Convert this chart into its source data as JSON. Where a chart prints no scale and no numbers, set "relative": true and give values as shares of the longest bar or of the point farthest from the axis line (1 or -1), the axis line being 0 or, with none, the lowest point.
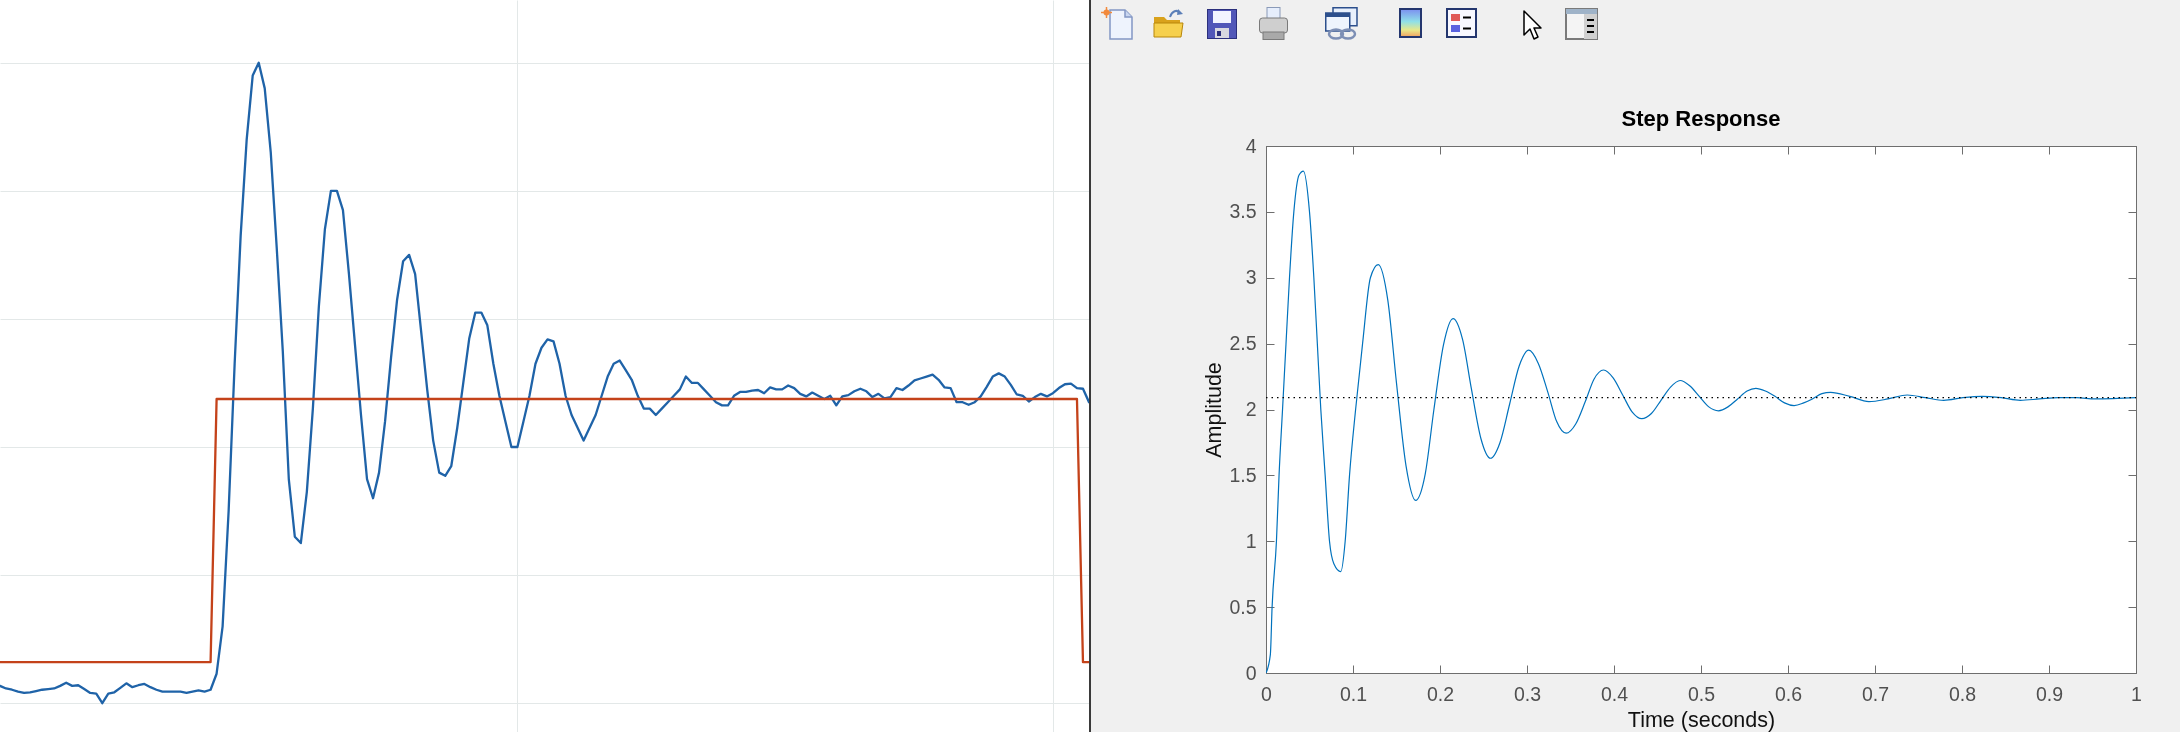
{
  "chart_data": [
    {
      "type": "line",
      "relative": true,
      "grid": true,
      "categories": [
        null,
        null,
        null,
        null,
        null,
        null,
        null,
        null,
        null,
        null,
        null,
        null,
        null,
        null,
        null,
        null,
        null,
        null,
        null,
        null,
        null,
        null,
        null,
        null,
        null,
        null,
        null,
        null,
        null,
        null,
        null,
        null,
        null,
        null,
        null,
        null,
        null,
        null,
        null,
        null,
        null,
        null,
        null,
        null,
        null,
        null,
        null,
        null,
        null,
        null,
        null,
        null,
        null,
        null,
        null,
        null,
        null,
        null,
        null,
        null,
        null,
        null,
        null,
        null,
        null,
        null,
        null,
        null,
        null,
        null,
        null,
        null,
        null,
        null,
        null,
        null,
        null,
        null,
        null,
        null,
        null,
        null,
        null,
        null,
        null,
        null,
        null,
        null,
        null,
        null,
        null,
        null,
        null,
        null,
        null,
        null,
        null,
        null,
        null,
        null,
        null,
        null,
        null,
        null,
        null,
        null,
        null,
        null,
        null,
        null,
        null,
        null,
        null,
        null,
        null,
        null,
        null,
        null,
        null,
        null,
        null,
        null,
        null,
        null,
        null,
        null,
        null,
        null,
        null,
        null,
        null,
        null,
        null,
        null,
        null,
        null,
        null,
        null,
        null,
        null,
        null,
        null,
        null,
        null,
        null,
        null,
        null,
        null,
        null,
        null,
        null,
        null,
        null,
        null,
        null,
        null,
        null,
        null,
        null,
        null,
        null,
        null,
        null,
        null,
        null,
        null,
        null,
        null,
        null,
        null,
        null,
        null,
        null,
        null,
        null,
        null,
        null,
        null,
        null,
        null,
        null,
        null
      ],
      "series": [
        {
          "color": "#1f63a8",
          "values": [
            0.027,
            0.023,
            0.021,
            0.018,
            0.016,
            0.017,
            0.019,
            0.021,
            0.022,
            0.023,
            0.027,
            0.032,
            0.027,
            0.028,
            0.022,
            0.016,
            0.015,
            0,
            0.015,
            0.017,
            0.024,
            0.031,
            0.025,
            0.028,
            0.03,
            0.025,
            0.021,
            0.018,
            0.018,
            0.018,
            0.018,
            0.016,
            0.018,
            0.02,
            0.018,
            0.021,
            0.046,
            0.12,
            0.3,
            0.53,
            0.73,
            0.88,
            0.98,
            1,
            0.96,
            0.86,
            0.71,
            0.55,
            0.35,
            0.26,
            0.25,
            0.33,
            0.46,
            0.62,
            0.74,
            0.8,
            0.8,
            0.77,
            0.67,
            0.56,
            0.45,
            0.35,
            0.32,
            0.36,
            0.44,
            0.54,
            0.63,
            0.69,
            0.7,
            0.67,
            0.58,
            0.49,
            0.41,
            0.36,
            0.355,
            0.37,
            0.43,
            0.5,
            0.57,
            0.61,
            0.61,
            0.59,
            0.53,
            0.48,
            0.44,
            0.4,
            0.4,
            0.44,
            0.48,
            0.53,
            0.555,
            0.568,
            0.565,
            0.53,
            0.48,
            0.45,
            0.43,
            0.41,
            0.43,
            0.45,
            0.48,
            0.51,
            0.53,
            0.535,
            0.52,
            0.505,
            0.48,
            0.46,
            0.46,
            0.45,
            0.46,
            0.47,
            0.48,
            0.49,
            0.51,
            0.5,
            0.5,
            0.49,
            0.48,
            0.47,
            0.465,
            0.465,
            0.48,
            0.486,
            0.486,
            0.488,
            0.489,
            0.484,
            0.493,
            0.49,
            0.49,
            0.496,
            0.492,
            0.483,
            0.479,
            0.485,
            0.48,
            0.475,
            0.48,
            0.465,
            0.479,
            0.481,
            0.487,
            0.491,
            0.487,
            0.478,
            0.483,
            0.476,
            0.478,
            0.492,
            0.489,
            0.496,
            0.504,
            0.507,
            0.51,
            0.513,
            0.505,
            0.493,
            0.492,
            0.47,
            0.47,
            0.466,
            0.47,
            0.479,
            0.494,
            0.51,
            0.515,
            0.51,
            0.497,
            0.482,
            0.48,
            0.471,
            0.478,
            0.483,
            0.479,
            0.484,
            0.492,
            0.498,
            0.499,
            0.492,
            0.491,
            0.47
          ]
        },
        {
          "color": "#c4421a",
          "values": [
            0.064,
            0.064,
            0.064,
            0.064,
            0.064,
            0.064,
            0.064,
            0.064,
            0.064,
            0.064,
            0.064,
            0.064,
            0.064,
            0.064,
            0.064,
            0.064,
            0.064,
            0.064,
            0.064,
            0.064,
            0.064,
            0.064,
            0.064,
            0.064,
            0.064,
            0.064,
            0.064,
            0.064,
            0.064,
            0.064,
            0.064,
            0.064,
            0.064,
            0.064,
            0.064,
            0.064,
            0.475,
            0.475,
            0.475,
            0.475,
            0.475,
            0.475,
            0.475,
            0.475,
            0.475,
            0.475,
            0.475,
            0.475,
            0.475,
            0.475,
            0.475,
            0.475,
            0.475,
            0.475,
            0.475,
            0.475,
            0.475,
            0.475,
            0.475,
            0.475,
            0.475,
            0.475,
            0.475,
            0.475,
            0.475,
            0.475,
            0.475,
            0.475,
            0.475,
            0.475,
            0.475,
            0.475,
            0.475,
            0.475,
            0.475,
            0.475,
            0.475,
            0.475,
            0.475,
            0.475,
            0.475,
            0.475,
            0.475,
            0.475,
            0.475,
            0.475,
            0.475,
            0.475,
            0.475,
            0.475,
            0.475,
            0.475,
            0.475,
            0.475,
            0.475,
            0.475,
            0.475,
            0.475,
            0.475,
            0.475,
            0.475,
            0.475,
            0.475,
            0.475,
            0.475,
            0.475,
            0.475,
            0.475,
            0.475,
            0.475,
            0.475,
            0.475,
            0.475,
            0.475,
            0.475,
            0.475,
            0.475,
            0.475,
            0.475,
            0.475,
            0.475,
            0.475,
            0.475,
            0.475,
            0.475,
            0.475,
            0.475,
            0.475,
            0.475,
            0.475,
            0.475,
            0.475,
            0.475,
            0.475,
            0.475,
            0.475,
            0.475,
            0.475,
            0.475,
            0.475,
            0.475,
            0.475,
            0.475,
            0.475,
            0.475,
            0.475,
            0.475,
            0.475,
            0.475,
            0.475,
            0.475,
            0.475,
            0.475,
            0.475,
            0.475,
            0.475,
            0.475,
            0.475,
            0.475,
            0.475,
            0.475,
            0.475,
            0.475,
            0.475,
            0.475,
            0.475,
            0.475,
            0.475,
            0.475,
            0.475,
            0.475,
            0.475,
            0.475,
            0.475,
            0.475,
            0.475,
            0.475,
            0.475,
            0.475,
            0.475,
            0.064,
            0.064
          ]
        }
      ]
    },
    {
      "type": "line",
      "title": "Step Response",
      "xlabel": "Time (seconds)",
      "ylabel": "Amplitude",
      "x": [
        0,
        0.005,
        0.007,
        0.012,
        0.015,
        0.019,
        0.023,
        0.027,
        0.032,
        0.038,
        0.043,
        0.05,
        0.055,
        0.059,
        0.063,
        0.068,
        0.073,
        0.078,
        0.086,
        0.091,
        0.096,
        0.103,
        0.111,
        0.12,
        0.129,
        0.14,
        0.15,
        0.161,
        0.172,
        0.183,
        0.193,
        0.204,
        0.215,
        0.226,
        0.236,
        0.247,
        0.258,
        0.269,
        0.28,
        0.291,
        0.302,
        0.313,
        0.324,
        0.334,
        0.345,
        0.356,
        0.367,
        0.377,
        0.388,
        0.399,
        0.41,
        0.421,
        0.432,
        0.443,
        0.454,
        0.465,
        0.476,
        0.487,
        0.498,
        0.509,
        0.52,
        0.531,
        0.542,
        0.553,
        0.563,
        0.574,
        0.585,
        0.596,
        0.607,
        0.618,
        0.628,
        0.639,
        0.649,
        0.671,
        0.693,
        0.715,
        0.737,
        0.758,
        0.779,
        0.801,
        0.823,
        0.845,
        0.867,
        0.889,
        0.911,
        0.932,
        0.953,
        1
      ],
      "series": [
        {
          "color": "#0072bd",
          "values": [
            0,
            0.14,
            0.5,
            1,
            1.5,
            2,
            2.5,
            3,
            3.5,
            3.78,
            3.81,
            3.5,
            3,
            2.5,
            2,
            1.5,
            1,
            0.83,
            0.77,
            1,
            1.5,
            2,
            2.5,
            3,
            3.1,
            2.83,
            2.2,
            1.57,
            1.31,
            1.51,
            2,
            2.49,
            2.69,
            2.53,
            2.16,
            1.78,
            1.63,
            1.75,
            2.04,
            2.33,
            2.45,
            2.35,
            2.13,
            1.91,
            1.82,
            1.89,
            2.06,
            2.23,
            2.3,
            2.24,
            2.11,
            1.98,
            1.93,
            1.97,
            2.07,
            2.17,
            2.22,
            2.18,
            2.1,
            2.02,
            1.99,
            2.02,
            2.08,
            2.14,
            2.16,
            2.14,
            2.1,
            2.05,
            2.03,
            2.05,
            2.08,
            2.12,
            2.13,
            2.1,
            2.06,
            2.08,
            2.11,
            2.09,
            2.07,
            2.09,
            2.1,
            2.09,
            2.07,
            2.08,
            2.09,
            2.09,
            2.08,
            2.09
          ]
        }
      ],
      "xlim": [
        0,
        1
      ],
      "xticks": [
        0,
        0.1,
        0.2,
        0.3,
        0.4,
        0.5,
        0.6,
        0.7,
        0.8,
        0.9,
        1
      ],
      "ylim": [
        0,
        4
      ],
      "yticks": [
        0,
        0.5,
        1,
        1.5,
        2,
        2.5,
        3,
        3.5,
        4
      ],
      "ref_lines": [
        {
          "axis": "y",
          "value": 2.09,
          "line_style": "dotted",
          "color": "#000000"
        }
      ]
    }
  ]
}
